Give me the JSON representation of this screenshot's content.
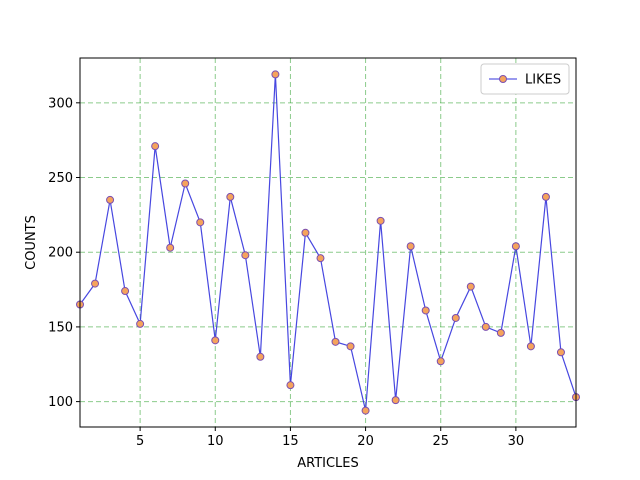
{
  "chart_data": {
    "type": "line",
    "xlabel": "ARTICLES",
    "ylabel": "COUNTS",
    "xlim": [
      1,
      34
    ],
    "ylim": [
      83,
      330
    ],
    "xticks": [
      5,
      10,
      15,
      20,
      25,
      30
    ],
    "yticks": [
      100,
      150,
      200,
      250,
      300
    ],
    "grid": true,
    "grid_color": "#2ca02c",
    "legend_position": "upper right",
    "series": [
      {
        "name": "LIKES",
        "line_color": "#3333dd",
        "marker_fill": "#f5a35c",
        "marker_edge": "#7b4fb0",
        "x": [
          1,
          2,
          3,
          4,
          5,
          6,
          7,
          8,
          9,
          10,
          11,
          12,
          13,
          14,
          15,
          16,
          17,
          18,
          19,
          20,
          21,
          22,
          23,
          24,
          25,
          26,
          27,
          28,
          29,
          30,
          31,
          32,
          33,
          34
        ],
        "values": [
          165,
          179,
          235,
          174,
          152,
          271,
          203,
          246,
          220,
          141,
          237,
          198,
          130,
          319,
          111,
          213,
          196,
          140,
          137,
          94,
          221,
          101,
          204,
          161,
          127,
          156,
          177,
          150,
          146,
          204,
          137,
          237,
          133,
          103
        ]
      }
    ]
  }
}
